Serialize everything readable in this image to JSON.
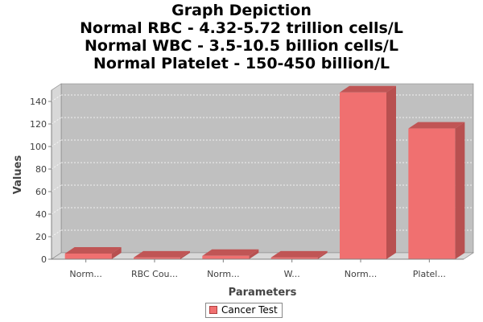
{
  "chart_data": {
    "type": "bar",
    "title_lines": [
      "Graph Depiction",
      "Normal RBC - 4.32-5.72 trillion cells/L",
      "Normal WBC - 3.5-10.5 billion cells/L",
      "Normal Platelet - 150-450 billion/L"
    ],
    "xlabel": "Parameters",
    "ylabel": "Values",
    "categories": [
      "Norm...",
      "RBC Cou...",
      "Norm...",
      "W...",
      "Norm...",
      "Platel..."
    ],
    "series": [
      {
        "name": "Cancer Test",
        "values": [
          5,
          1.5,
          3,
          1.5,
          148,
          116
        ]
      }
    ],
    "ylim": [
      0,
      150
    ],
    "yticks": [
      0,
      20,
      40,
      60,
      80,
      100,
      120,
      140
    ],
    "grid": true,
    "legend_position": "bottom-center",
    "bar_color": "#f07070",
    "bar_side_color": "#b85050",
    "bar_top_color": "#c05555",
    "plot_background": "#c0c0c0"
  }
}
